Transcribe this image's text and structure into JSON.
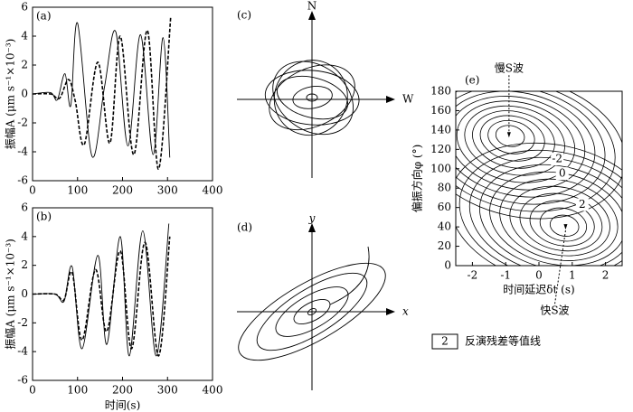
{
  "chart_data": [
    {
      "type": "line",
      "title": "(a)",
      "ylabel": "振幅A (μm s⁻¹×10⁻³)",
      "xlim": [
        0,
        400
      ],
      "xticks": [
        0,
        100,
        200,
        300,
        400
      ],
      "ylim": [
        -6,
        6
      ],
      "yticks": [
        -6,
        -4,
        -2,
        0,
        2,
        4,
        6
      ],
      "series": [
        {
          "color": "#000000",
          "style": "solid",
          "x": [
            0,
            40,
            55,
            72,
            85,
            100,
            132,
            160,
            185,
            212,
            240,
            268,
            290,
            305
          ],
          "values": [
            0,
            0.1,
            -0.4,
            1.4,
            -0.8,
            4.9,
            -4.3,
            0.5,
            4.3,
            -3.6,
            4.1,
            -4.2,
            3.9,
            -4.4
          ]
        },
        {
          "color": "#000000",
          "style": "dashed",
          "x": [
            0,
            40,
            60,
            80,
            95,
            115,
            145,
            172,
            195,
            225,
            255,
            280,
            307
          ],
          "values": [
            0,
            0,
            -0.3,
            1.0,
            -0.5,
            -3.5,
            2.2,
            -3.4,
            4.0,
            -4.2,
            4.4,
            -5.2,
            5.3
          ]
        }
      ]
    },
    {
      "type": "line",
      "title": "(b)",
      "ylabel": "振幅A (μm s⁻¹×10⁻³)",
      "xlabel": "时间(s)",
      "xlim": [
        0,
        400
      ],
      "xticks": [
        0,
        100,
        200,
        300,
        400
      ],
      "ylim": [
        -6,
        6
      ],
      "yticks": [
        -6,
        -4,
        -2,
        0,
        2,
        4,
        6
      ],
      "series": [
        {
          "color": "#000000",
          "style": "solid",
          "x": [
            0,
            50,
            70,
            88,
            110,
            145,
            165,
            195,
            215,
            245,
            275,
            303
          ],
          "values": [
            0,
            0,
            -0.5,
            1.9,
            -3.8,
            2.7,
            -3.5,
            4.0,
            -4.3,
            4.4,
            -4.3,
            4.9
          ]
        },
        {
          "color": "#000000",
          "style": "dashed",
          "x": [
            0,
            50,
            70,
            88,
            110,
            140,
            165,
            195,
            220,
            250,
            280,
            305
          ],
          "values": [
            0,
            0,
            -0.4,
            1.5,
            -3.2,
            1.7,
            -2.6,
            3.0,
            -3.8,
            3.6,
            -4.3,
            4.0
          ]
        }
      ]
    },
    {
      "type": "particle-motion",
      "title": "(c)",
      "vertical_label": "N",
      "horizontal_label": "W"
    },
    {
      "type": "particle-motion",
      "title": "(d)",
      "vertical_label": "y",
      "horizontal_label": "x"
    },
    {
      "type": "contour",
      "title": "(e)",
      "xlabel": "时间延迟δt (s)",
      "ylabel": "偏振方向φ (°)",
      "xlim": [
        -2.5,
        2.5
      ],
      "xticks": [
        -2,
        -1,
        0,
        1,
        2
      ],
      "ylim": [
        0,
        180
      ],
      "yticks": [
        0,
        20,
        40,
        60,
        80,
        100,
        120,
        140,
        160,
        180
      ],
      "levels": [
        -2,
        0,
        2
      ],
      "points": [
        {
          "label": "慢S波",
          "x": -0.9,
          "y": 135
        },
        {
          "label": "快S波",
          "x": 0.8,
          "y": 40
        }
      ],
      "legend_label": "反演残差等值线"
    }
  ]
}
